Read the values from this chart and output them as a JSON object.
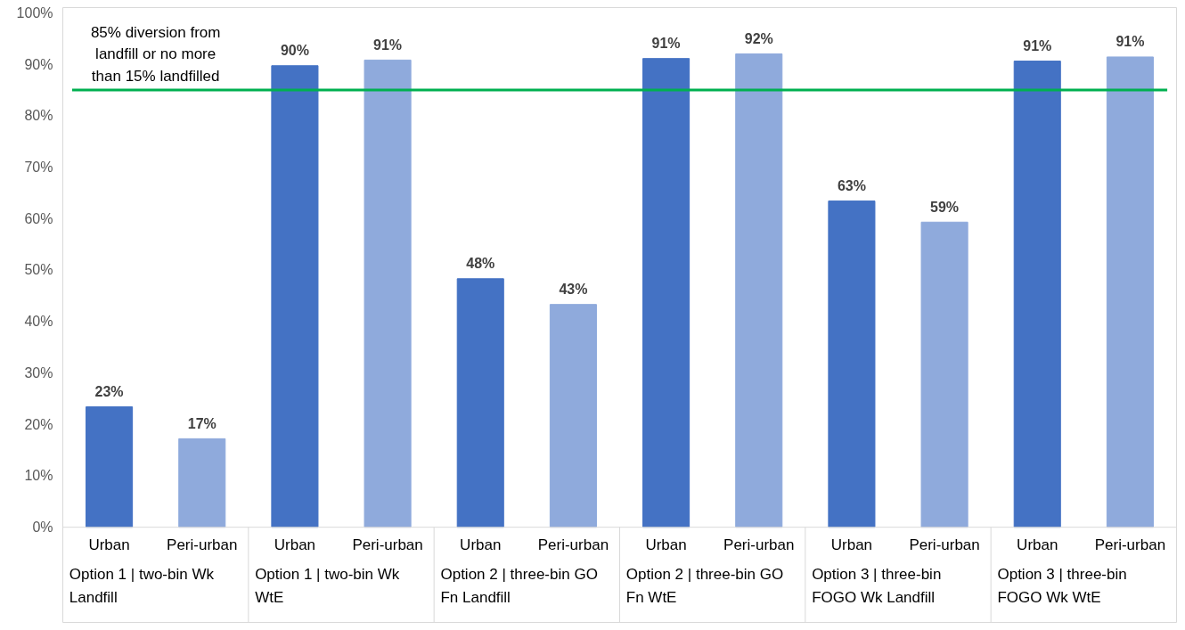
{
  "chart_data": {
    "type": "bar",
    "categories": [
      "Urban",
      "Peri-urban",
      "Urban",
      "Peri-urban",
      "Urban",
      "Peri-urban",
      "Urban",
      "Peri-urban",
      "Urban",
      "Peri-urban",
      "Urban",
      "Peri-urban"
    ],
    "values": [
      23.4,
      17.2,
      89.7,
      90.8,
      48.3,
      43.3,
      91.1,
      92.0,
      63.4,
      59.3,
      90.6,
      91.4
    ],
    "value_labels": [
      "23%",
      "17%",
      "90%",
      "91%",
      "48%",
      "43%",
      "91%",
      "92%",
      "63%",
      "59%",
      "91%",
      "91%"
    ],
    "colors": [
      "#4472c4",
      "#8faadc",
      "#4472c4",
      "#8faadc",
      "#4472c4",
      "#8faadc",
      "#4472c4",
      "#8faadc",
      "#4472c4",
      "#8faadc",
      "#4472c4",
      "#8faadc"
    ],
    "ylim": [
      0,
      100
    ],
    "yticks": [
      {
        "value": 0,
        "label": "0%"
      },
      {
        "value": 10,
        "label": "10%"
      },
      {
        "value": 20,
        "label": "20%"
      },
      {
        "value": 30,
        "label": "30%"
      },
      {
        "value": 40,
        "label": "40%"
      },
      {
        "value": 50,
        "label": "50%"
      },
      {
        "value": 60,
        "label": "60%"
      },
      {
        "value": 70,
        "label": "70%"
      },
      {
        "value": 80,
        "label": "80%"
      },
      {
        "value": 90,
        "label": "90%"
      },
      {
        "value": 100,
        "label": "100%"
      }
    ],
    "grid": false,
    "ref_lines": [
      {
        "axis": "y",
        "value": 85,
        "label": "85% diversion from\nlandfill or no more\nthan 15% landfilled",
        "color": "#00b050"
      }
    ],
    "annotations": [
      "Option 1 | two-bin Wk\nLandfill",
      "Option 1 | two-bin Wk\nWtE",
      "Option 2 | three-bin GO\nFn Landfill",
      "Option 2 | three-bin GO\nFn WtE",
      "Option 3 | three-bin\nFOGO Wk Landfill",
      "Option 3 | three-bin\nFOGO Wk WtE"
    ]
  }
}
